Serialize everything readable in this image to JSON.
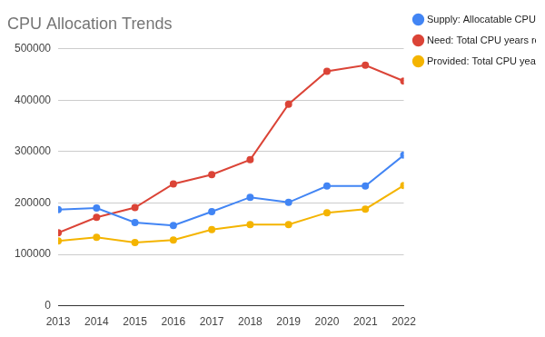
{
  "chart_data": {
    "type": "line",
    "title": "CPU Allocation Trends",
    "categories": [
      "2013",
      "2014",
      "2015",
      "2016",
      "2017",
      "2018",
      "2019",
      "2020",
      "2021",
      "2022"
    ],
    "series": [
      {
        "name": "Supply: Allocatable CPU years",
        "color": "#4285f4",
        "marker": "circle",
        "values": [
          187000,
          190000,
          162000,
          156000,
          183000,
          211000,
          201000,
          233000,
          233000,
          293000
        ]
      },
      {
        "name": "Need: Total CPU years requested",
        "color": "#db4437",
        "marker": "circle",
        "values": [
          142000,
          172000,
          191000,
          237000,
          255000,
          284000,
          392000,
          456000,
          468000,
          437000
        ]
      },
      {
        "name": "Provided: Total CPU years allocated",
        "color": "#f4b400",
        "marker": "circle",
        "values": [
          126000,
          133000,
          123000,
          128000,
          148000,
          158000,
          158000,
          181000,
          188000,
          234000
        ]
      }
    ],
    "ylim": [
      0,
      500000
    ],
    "yticks": [
      0,
      100000,
      200000,
      300000,
      400000,
      500000
    ],
    "grid": true,
    "legend": "right"
  }
}
